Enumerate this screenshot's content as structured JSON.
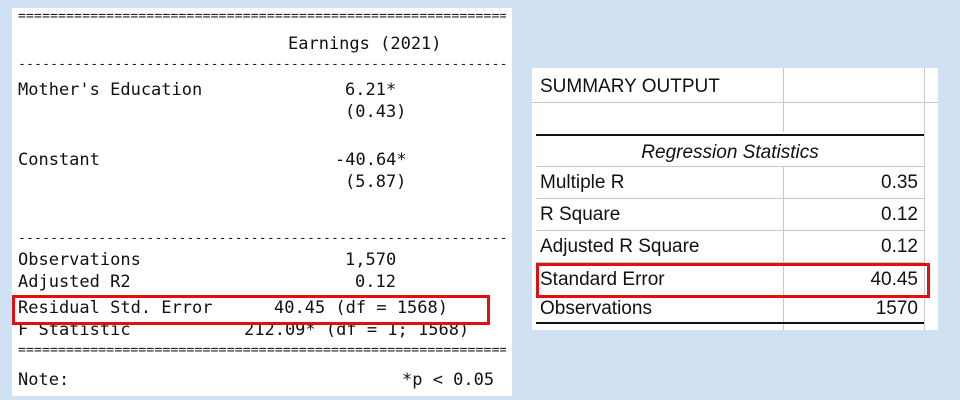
{
  "stargazer": {
    "rule_double": "===================================================================",
    "rule_single": "-------------------------------------------------------------------",
    "dependent_variable": "Earnings (2021)",
    "rows": [
      {
        "label": "Mother's Education",
        "value": "6.21*",
        "se": "(0.43)"
      },
      {
        "label": "Constant",
        "value": "-40.64*",
        "se": "(5.87)"
      }
    ],
    "stats": [
      {
        "label": "Observations",
        "value": "1,570"
      },
      {
        "label": "Adjusted R2",
        "value": "0.12"
      },
      {
        "label": "Residual Std. Error",
        "value": "40.45 (df = 1568)"
      },
      {
        "label": "F Statistic",
        "value": "212.09* (df = 1; 1568)"
      }
    ],
    "note_label": "Note:",
    "note_text": "*p < 0.05"
  },
  "excel": {
    "title": "SUMMARY OUTPUT",
    "section_header": "Regression Statistics",
    "rows": [
      {
        "label": "Multiple R",
        "value": "0.35"
      },
      {
        "label": "R Square",
        "value": "0.12"
      },
      {
        "label": "Adjusted R Square",
        "value": "0.12"
      },
      {
        "label": "Standard Error",
        "value": "40.45"
      },
      {
        "label": "Observations",
        "value": "1570"
      }
    ]
  },
  "highlight_color": "#e01010"
}
